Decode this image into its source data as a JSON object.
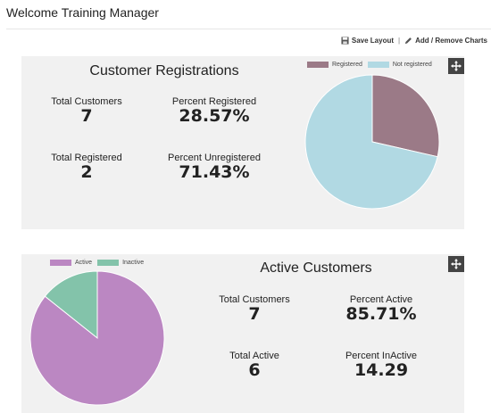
{
  "header": {
    "title": "Welcome Training Manager"
  },
  "toolbar": {
    "save_label": "Save Layout",
    "separator": "|",
    "add_remove_label": "Add / Remove Charts"
  },
  "registrations_panel": {
    "title": "Customer Registrations",
    "stats": {
      "total_customers_label": "Total Customers",
      "total_customers_value": "7",
      "percent_registered_label": "Percent Registered",
      "percent_registered_value": "28.57%",
      "total_registered_label": "Total Registered",
      "total_registered_value": "2",
      "percent_unregistered_label": "Percent Unregistered",
      "percent_unregistered_value": "71.43%"
    },
    "legend": [
      {
        "label": "Registered",
        "color": "#9b7a87"
      },
      {
        "label": "Not registered",
        "color": "#b1d9e3"
      }
    ],
    "move_icon": "move-arrows-icon"
  },
  "active_panel": {
    "title": "Active Customers",
    "stats": {
      "total_customers_label": "Total Customers",
      "total_customers_value": "7",
      "percent_active_label": "Percent Active",
      "percent_active_value": "85.71%",
      "total_active_label": "Total Active",
      "total_active_value": "6",
      "percent_inactive_label": "Percent InActive",
      "percent_inactive_value": "14.29"
    },
    "legend": [
      {
        "label": "Active",
        "color": "#bb87c2"
      },
      {
        "label": "Inactive",
        "color": "#83c3aa"
      }
    ],
    "move_icon": "move-arrows-icon"
  },
  "chart_data": [
    {
      "type": "pie",
      "categories": [
        "Registered",
        "Not registered"
      ],
      "values": [
        2,
        5
      ],
      "colors": [
        "#9b7a87",
        "#b1d9e3"
      ],
      "legend": "top-right"
    },
    {
      "type": "pie",
      "categories": [
        "Active",
        "Inactive"
      ],
      "values": [
        6,
        1
      ],
      "colors": [
        "#bb87c2",
        "#83c3aa"
      ],
      "legend": "top-left"
    }
  ]
}
